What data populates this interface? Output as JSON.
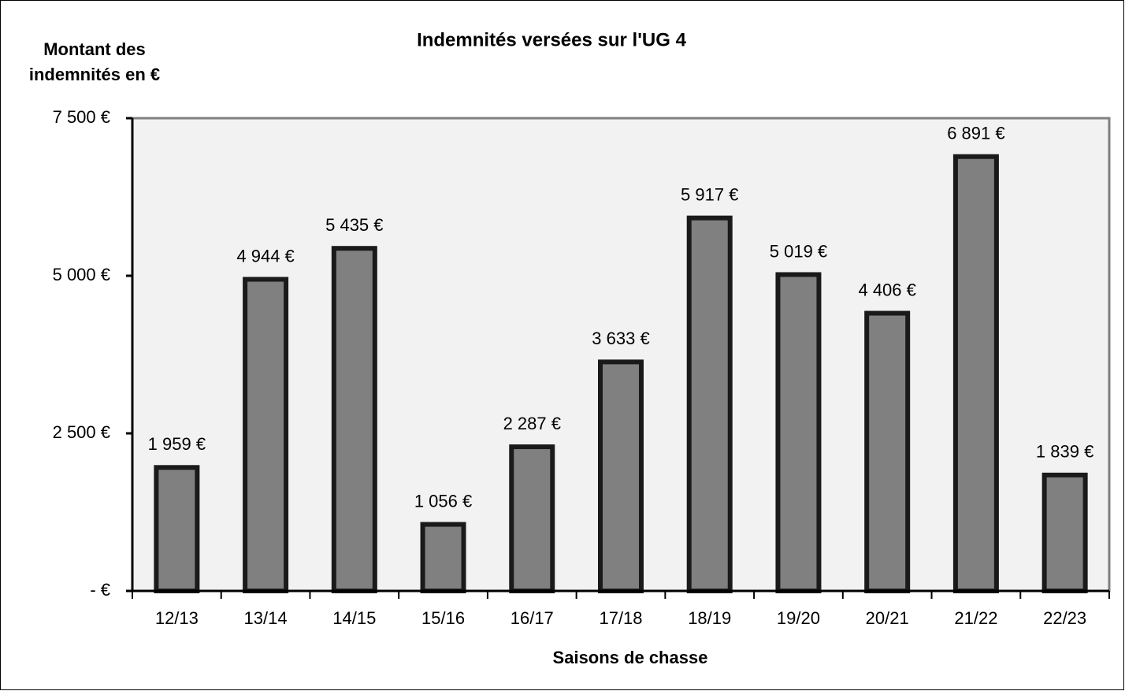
{
  "chart_data": {
    "type": "bar",
    "title": "Indemnités versées sur l'UG 4",
    "y_label": [
      "Montant des",
      "indemnités en €"
    ],
    "x_label": "Saisons de chasse",
    "categories": [
      "12/13",
      "13/14",
      "14/15",
      "15/16",
      "16/17",
      "17/18",
      "18/19",
      "19/20",
      "20/21",
      "21/22",
      "22/23"
    ],
    "values": [
      1959,
      4944,
      5435,
      1056,
      2287,
      3633,
      5917,
      5019,
      4406,
      6891,
      1839
    ],
    "value_labels": [
      "1 959 €",
      "4 944 €",
      "5 435 €",
      "1 056 €",
      "2 287 €",
      "3 633 €",
      "5 917 €",
      "5 019 €",
      "4 406 €",
      "6 891 €",
      "1 839 €"
    ],
    "color": "#808080",
    "ylim": [
      0,
      7500
    ],
    "yticks": [
      {
        "value": 0,
        "label": "-  €"
      },
      {
        "value": 2500,
        "label": "2 500 €"
      },
      {
        "value": 5000,
        "label": "5 000 €"
      },
      {
        "value": 7500,
        "label": "7 500 €"
      }
    ],
    "grid": false
  }
}
